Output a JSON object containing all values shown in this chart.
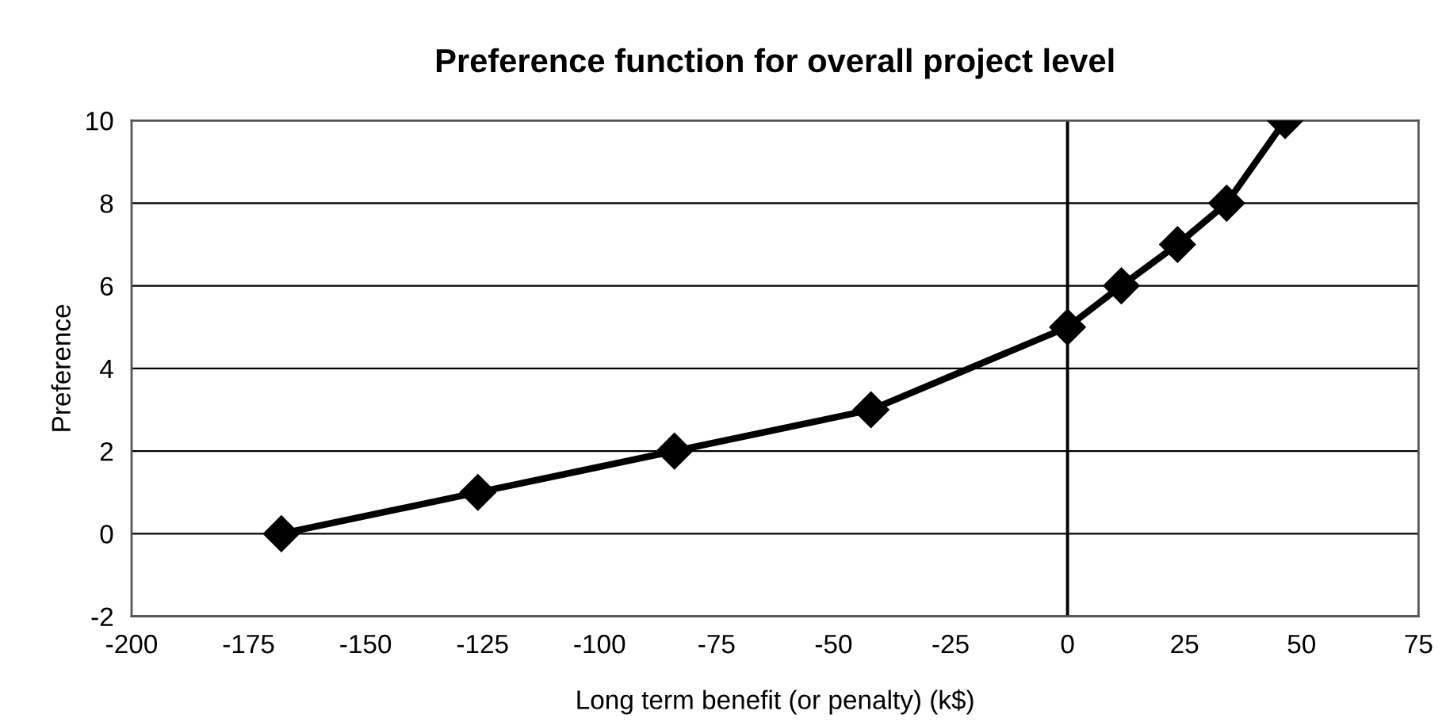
{
  "chart_data": {
    "type": "line",
    "title": "Preference function for overall project level",
    "xlabel": "Long term benefit (or penalty) (k$)",
    "ylabel": "Preference",
    "x": [
      -168,
      -126,
      -84,
      -42,
      0,
      11.5,
      23.5,
      34,
      46.5
    ],
    "series": [
      {
        "color": "#000000",
        "values": [
          0,
          1,
          2,
          3,
          5,
          6,
          7,
          8,
          10
        ]
      }
    ],
    "marker": "diamond",
    "line_style": "solid",
    "xlim": [
      -200,
      75
    ],
    "xticks": [
      -200,
      -175,
      -150,
      -125,
      -100,
      -75,
      -50,
      -25,
      0,
      25,
      50,
      75
    ],
    "ylim": [
      -2,
      10
    ],
    "yticks": [
      -2,
      0,
      2,
      4,
      6,
      8,
      10
    ],
    "grid": "y",
    "ref_lines": [
      {
        "axis": "x",
        "value": 0
      }
    ]
  }
}
